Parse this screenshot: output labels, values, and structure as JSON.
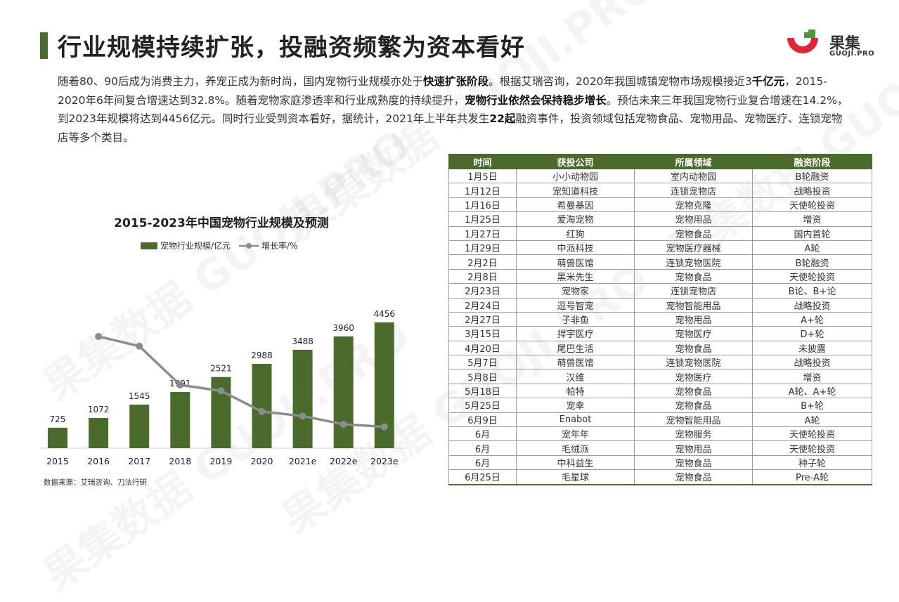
{
  "page": {
    "title": "行业规模持续扩张，投融资频繁为资本看好",
    "logo": {
      "name": "果集",
      "sub": "GUOJI.PRO"
    },
    "watermark": "果集数据 GUOJI.PRO",
    "paragraph": [
      {
        "t": "随着80、90后成为消费主力，养宠正成为新时尚，国内宠物行业规模亦处于",
        "b": false
      },
      {
        "t": "快速扩张阶段",
        "b": true
      },
      {
        "t": "。根据艾瑞咨询，2020年我国城镇宠物市场规模接近3",
        "b": false
      },
      {
        "t": "千亿元",
        "b": true
      },
      {
        "t": "，2015-2020年6年间复合增速达到32.8%。随着宠物家庭渗透率和行业成熟度的持续提升，",
        "b": false
      },
      {
        "t": "宠物行业依然会保持稳步增长",
        "b": true
      },
      {
        "t": "。预估未来三年我国宠物行业复合增速在14.2%，到2023年规模将达到4456亿元。同时行业受到资本看好，据统计，2021年上半年共发生",
        "b": false
      },
      {
        "t": "22起",
        "b": true
      },
      {
        "t": "融资事件，投资领域包括宠物食品、宠物用品、宠物医疗、连锁宠物店等多个类目。",
        "b": false
      }
    ],
    "source": "数据来源：艾瑞咨询、刀法行研"
  },
  "chart_data": {
    "type": "bar",
    "title": "2015-2023年中国宠物行业规模及预测",
    "categories": [
      "2015",
      "2016",
      "2017",
      "2018",
      "2019",
      "2020",
      "2021e",
      "2022e",
      "2023e"
    ],
    "series": [
      {
        "name": "宠物行业规模/亿元",
        "type": "bar",
        "values": [
          725,
          1072,
          1545,
          1991,
          2521,
          2988,
          3488,
          3960,
          4456
        ],
        "color": "#4a6b2c"
      },
      {
        "name": "增长率/%",
        "type": "line",
        "values": [
          null,
          47.9,
          44.1,
          28.9,
          26.6,
          18.5,
          16.7,
          13.5,
          12.5
        ],
        "color": "#8c8c8c"
      }
    ],
    "legend_position": "top",
    "grid": false
  },
  "table": {
    "headers": [
      "时间",
      "获投公司",
      "所属领域",
      "融资阶段"
    ],
    "rows": [
      [
        "1月5日",
        "小小动物园",
        "室内动物园",
        "B轮融资"
      ],
      [
        "1月12日",
        "宠知道科技",
        "连锁宠物店",
        "战略投资"
      ],
      [
        "1月16日",
        "希曼基因",
        "宠物克隆",
        "天使轮投资"
      ],
      [
        "1月25日",
        "爱淘宠物",
        "宠物用品",
        "增资"
      ],
      [
        "1月27日",
        "红狗",
        "宠物食品",
        "国内首轮"
      ],
      [
        "1月29日",
        "中派科技",
        "宠物医疗器械",
        "A轮"
      ],
      [
        "2月2日",
        "萌兽医馆",
        "连锁宠物医院",
        "B轮融资"
      ],
      [
        "2月8日",
        "黑米先生",
        "宠物食品",
        "天使轮投资"
      ],
      [
        "2月23日",
        "宠物家",
        "连锁宠物店",
        "B论、B+论"
      ],
      [
        "2月24日",
        "逗号智宠",
        "宠物智能用品",
        "战略投资"
      ],
      [
        "2月27日",
        "子非鱼",
        "宠物用品",
        "A+轮"
      ],
      [
        "3月15日",
        "捍宇医疗",
        "宠物医疗",
        "D+轮"
      ],
      [
        "4月20日",
        "尾巴生活",
        "宠物食品",
        "未披露"
      ],
      [
        "5月7日",
        "萌兽医馆",
        "连锁宠物医院",
        "战略投资"
      ],
      [
        "5月8日",
        "汉维",
        "宠物医疗",
        "增资"
      ],
      [
        "5月18日",
        "帕特",
        "宠物食品",
        "A轮、A+轮"
      ],
      [
        "5月25日",
        "宠幸",
        "宠物食品",
        "B+轮"
      ],
      [
        "6月9日",
        "Enabot",
        "宠物智能用品",
        "A轮"
      ],
      [
        "6月",
        "宠年年",
        "宠物服务",
        "天使轮投资"
      ],
      [
        "6月",
        "毛绒派",
        "宠物用品",
        "天使轮投资"
      ],
      [
        "6月",
        "中科益生",
        "宠物食品",
        "种子轮"
      ],
      [
        "6月25日",
        "毛星球",
        "宠物食品",
        "Pre-A轮"
      ]
    ]
  }
}
